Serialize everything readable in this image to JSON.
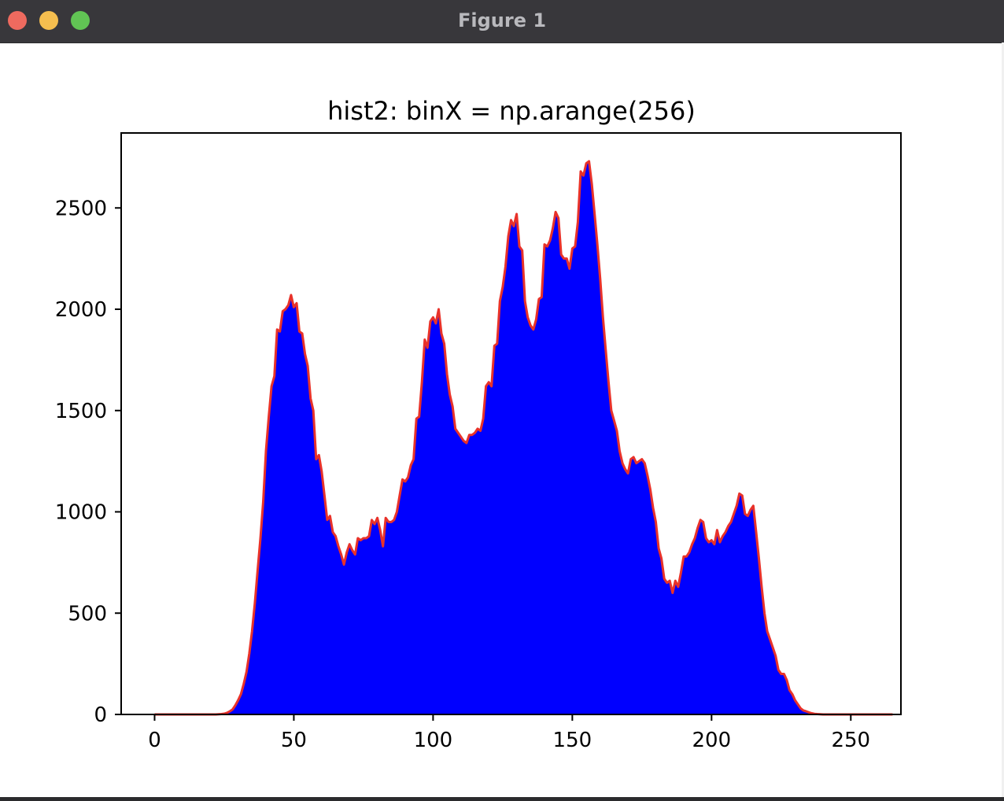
{
  "window": {
    "title": "Figure 1"
  },
  "colors": {
    "fill": "#0000ff",
    "line": "#e8322a",
    "titlebar": "#38373b"
  },
  "chart_data": {
    "type": "area",
    "title": "hist2: binX = np.arange(256)",
    "xlabel": "",
    "ylabel": "",
    "xlim": [
      -12,
      268
    ],
    "ylim": [
      0,
      2870
    ],
    "xticks": [
      0,
      50,
      100,
      150,
      200,
      250
    ],
    "yticks": [
      0,
      500,
      1000,
      1500,
      2000,
      2500
    ],
    "grid": false,
    "series": [
      {
        "x_start": 0,
        "x_step": 1,
        "values": [
          0,
          0,
          0,
          0,
          0,
          0,
          0,
          0,
          0,
          0,
          0,
          0,
          0,
          0,
          0,
          0,
          0,
          0,
          0,
          0,
          0,
          0,
          0,
          1,
          2,
          4,
          8,
          15,
          25,
          45,
          70,
          100,
          150,
          210,
          300,
          410,
          550,
          710,
          870,
          1050,
          1300,
          1470,
          1620,
          1670,
          1900,
          1890,
          1990,
          2000,
          2020,
          2070,
          2010,
          2030,
          1890,
          1880,
          1780,
          1720,
          1560,
          1500,
          1260,
          1280,
          1200,
          1080,
          960,
          980,
          900,
          880,
          830,
          790,
          740,
          800,
          840,
          810,
          790,
          870,
          860,
          870,
          870,
          880,
          960,
          940,
          970,
          910,
          830,
          970,
          950,
          950,
          960,
          1000,
          1080,
          1160,
          1150,
          1170,
          1230,
          1260,
          1460,
          1470,
          1640,
          1850,
          1810,
          1940,
          1960,
          1930,
          2000,
          1880,
          1830,
          1680,
          1580,
          1520,
          1410,
          1390,
          1370,
          1350,
          1340,
          1380,
          1380,
          1390,
          1410,
          1400,
          1460,
          1620,
          1640,
          1620,
          1820,
          1830,
          2040,
          2110,
          2210,
          2360,
          2440,
          2410,
          2470,
          2310,
          2290,
          2040,
          1960,
          1920,
          1900,
          1950,
          2050,
          2060,
          2320,
          2310,
          2340,
          2400,
          2480,
          2450,
          2270,
          2250,
          2250,
          2200,
          2300,
          2310,
          2430,
          2680,
          2660,
          2720,
          2730,
          2620,
          2470,
          2320,
          2150,
          1960,
          1800,
          1640,
          1500,
          1450,
          1400,
          1300,
          1240,
          1210,
          1190,
          1260,
          1270,
          1240,
          1250,
          1260,
          1240,
          1180,
          1110,
          1020,
          950,
          820,
          770,
          670,
          650,
          660,
          600,
          660,
          630,
          700,
          780,
          780,
          800,
          840,
          870,
          920,
          960,
          950,
          870,
          850,
          860,
          840,
          910,
          850,
          880,
          900,
          930,
          950,
          990,
          1030,
          1090,
          1080,
          990,
          980,
          1010,
          1030,
          900,
          770,
          630,
          500,
          410,
          370,
          330,
          290,
          220,
          200,
          200,
          170,
          120,
          100,
          70,
          50,
          30,
          20,
          15,
          10,
          6,
          3,
          2,
          1,
          0,
          0,
          0,
          0,
          0,
          0,
          0,
          0,
          0,
          0,
          0,
          0,
          0,
          0,
          0,
          0,
          0,
          0,
          0,
          0,
          0,
          0,
          0,
          0,
          0,
          0
        ]
      }
    ]
  }
}
